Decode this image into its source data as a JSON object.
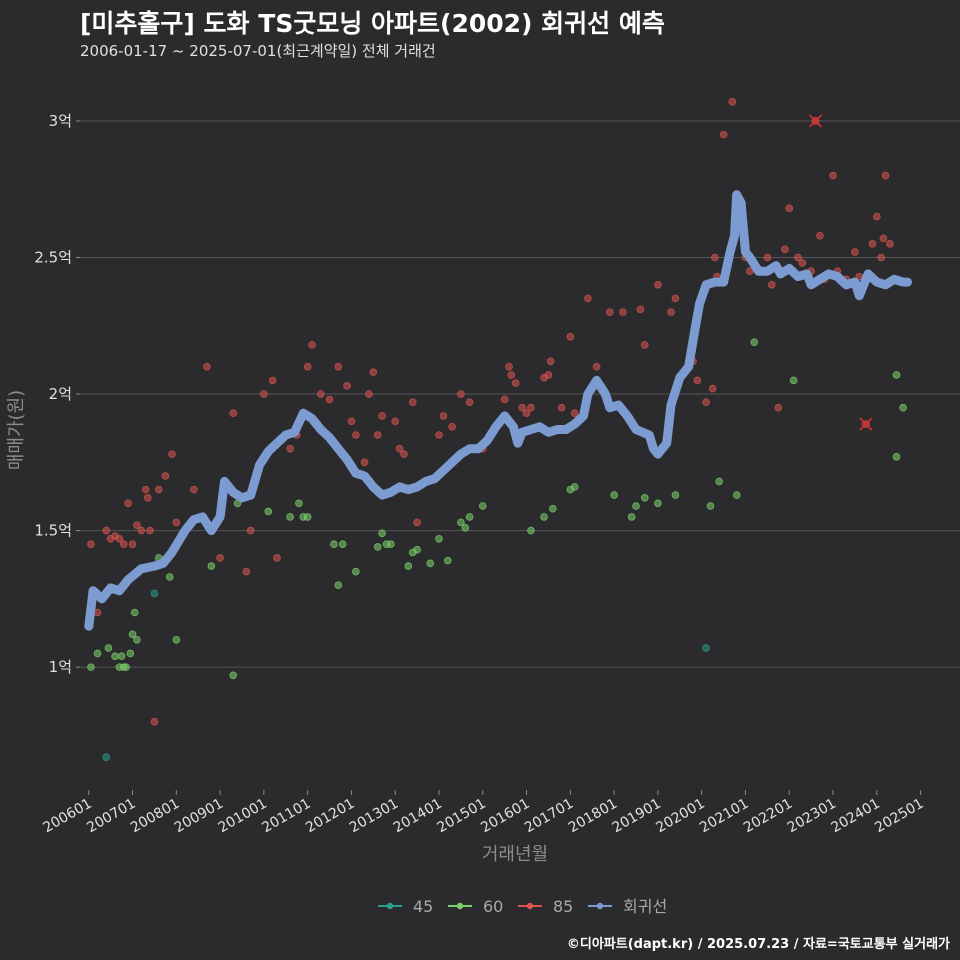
{
  "header": {
    "title": "[미추홀구] 도화 TS굿모닝 아파트(2002) 회귀선 예측",
    "subtitle": "2006-01-17 ~ 2025-07-01(최근계약일) 전체 거래건"
  },
  "footer": {
    "credit": "©디아파트(dapt.kr) / 2025.07.23 / 자료=국토교통부 실거래가"
  },
  "chart_data": {
    "type": "scatter",
    "title": "[미추홀구] 도화 TS굿모닝 아파트(2002) 회귀선 예측",
    "xlabel": "거래년월",
    "ylabel": "매매가(원)",
    "xlim": [
      2005.8,
      2025.9
    ],
    "ylim": [
      0.55,
      3.15
    ],
    "y_unit": "억",
    "yticks": [
      1,
      1.5,
      2,
      2.5,
      3
    ],
    "ytick_labels": [
      "1억",
      "1.5억",
      "2억",
      "2.5억",
      "3억"
    ],
    "xticks": [
      2006,
      2007,
      2008,
      2009,
      2010,
      2011,
      2012,
      2013,
      2014,
      2015,
      2016,
      2017,
      2018,
      2019,
      2020,
      2021,
      2022,
      2023,
      2024,
      2025
    ],
    "xtick_labels": [
      "200601",
      "200701",
      "200801",
      "200901",
      "201001",
      "201101",
      "201201",
      "201301",
      "201401",
      "201501",
      "201601",
      "201701",
      "201801",
      "201901",
      "202001",
      "202101",
      "202201",
      "202301",
      "202401",
      "202501"
    ],
    "legend_position": "bottom",
    "colors": {
      "45": "#2a9d8f",
      "60": "#7bcf6a",
      "85": "#d9534f",
      "regression": "#7b9bd1"
    },
    "series": [
      {
        "name": "45",
        "points": [
          [
            2006.4,
            0.67
          ],
          [
            2007.5,
            1.27
          ],
          [
            2020.1,
            1.07
          ]
        ]
      },
      {
        "name": "60",
        "points": [
          [
            2006.05,
            1.0
          ],
          [
            2006.2,
            1.05
          ],
          [
            2006.45,
            1.07
          ],
          [
            2006.6,
            1.04
          ],
          [
            2006.7,
            1.0
          ],
          [
            2006.75,
            1.04
          ],
          [
            2006.8,
            1.0
          ],
          [
            2006.85,
            1.0
          ],
          [
            2006.95,
            1.05
          ],
          [
            2007.0,
            1.12
          ],
          [
            2007.05,
            1.2
          ],
          [
            2007.1,
            1.1
          ],
          [
            2007.6,
            1.4
          ],
          [
            2007.85,
            1.33
          ],
          [
            2008.0,
            1.1
          ],
          [
            2008.8,
            1.37
          ],
          [
            2009.3,
            0.97
          ],
          [
            2009.4,
            1.6
          ],
          [
            2010.1,
            1.57
          ],
          [
            2010.6,
            1.55
          ],
          [
            2010.8,
            1.6
          ],
          [
            2010.9,
            1.55
          ],
          [
            2011.0,
            1.55
          ],
          [
            2011.6,
            1.45
          ],
          [
            2011.7,
            1.3
          ],
          [
            2011.8,
            1.45
          ],
          [
            2012.1,
            1.35
          ],
          [
            2012.6,
            1.44
          ],
          [
            2012.7,
            1.49
          ],
          [
            2012.8,
            1.45
          ],
          [
            2012.9,
            1.45
          ],
          [
            2013.3,
            1.37
          ],
          [
            2013.4,
            1.42
          ],
          [
            2013.5,
            1.43
          ],
          [
            2013.8,
            1.38
          ],
          [
            2014.0,
            1.47
          ],
          [
            2014.2,
            1.39
          ],
          [
            2014.5,
            1.53
          ],
          [
            2014.6,
            1.51
          ],
          [
            2014.7,
            1.55
          ],
          [
            2015.0,
            1.59
          ],
          [
            2016.1,
            1.5
          ],
          [
            2016.4,
            1.55
          ],
          [
            2016.6,
            1.58
          ],
          [
            2017.0,
            1.65
          ],
          [
            2017.1,
            1.66
          ],
          [
            2018.0,
            1.63
          ],
          [
            2018.4,
            1.55
          ],
          [
            2018.5,
            1.59
          ],
          [
            2018.7,
            1.62
          ],
          [
            2019.0,
            1.6
          ],
          [
            2019.4,
            1.63
          ],
          [
            2020.8,
            1.63
          ],
          [
            2020.4,
            1.68
          ],
          [
            2020.2,
            1.59
          ],
          [
            2021.2,
            2.19
          ],
          [
            2022.1,
            2.05
          ],
          [
            2024.45,
            1.77
          ],
          [
            2024.45,
            2.07
          ],
          [
            2024.6,
            1.95
          ]
        ]
      },
      {
        "name": "85",
        "points": [
          [
            2006.05,
            1.45
          ],
          [
            2006.2,
            1.2
          ],
          [
            2006.4,
            1.5
          ],
          [
            2006.5,
            1.47
          ],
          [
            2006.6,
            1.48
          ],
          [
            2006.7,
            1.47
          ],
          [
            2006.8,
            1.45
          ],
          [
            2006.9,
            1.6
          ],
          [
            2007.0,
            1.45
          ],
          [
            2007.1,
            1.52
          ],
          [
            2007.2,
            1.5
          ],
          [
            2007.3,
            1.65
          ],
          [
            2007.35,
            1.62
          ],
          [
            2007.4,
            1.5
          ],
          [
            2007.5,
            0.8
          ],
          [
            2007.6,
            1.65
          ],
          [
            2007.75,
            1.7
          ],
          [
            2007.9,
            1.78
          ],
          [
            2008.0,
            1.53
          ],
          [
            2008.4,
            1.65
          ],
          [
            2008.7,
            2.1
          ],
          [
            2009.0,
            1.4
          ],
          [
            2009.3,
            1.93
          ],
          [
            2009.6,
            1.35
          ],
          [
            2009.7,
            1.5
          ],
          [
            2010.0,
            2.0
          ],
          [
            2010.2,
            2.05
          ],
          [
            2010.3,
            1.4
          ],
          [
            2010.6,
            1.8
          ],
          [
            2010.75,
            1.85
          ],
          [
            2011.0,
            2.1
          ],
          [
            2011.1,
            2.18
          ],
          [
            2011.3,
            2.0
          ],
          [
            2011.5,
            1.98
          ],
          [
            2011.7,
            2.1
          ],
          [
            2011.9,
            2.03
          ],
          [
            2012.0,
            1.9
          ],
          [
            2012.1,
            1.85
          ],
          [
            2012.3,
            1.75
          ],
          [
            2012.4,
            2.0
          ],
          [
            2012.5,
            2.08
          ],
          [
            2012.6,
            1.85
          ],
          [
            2012.7,
            1.92
          ],
          [
            2013.0,
            1.9
          ],
          [
            2013.1,
            1.8
          ],
          [
            2013.2,
            1.78
          ],
          [
            2013.4,
            1.97
          ],
          [
            2013.5,
            1.53
          ],
          [
            2014.0,
            1.85
          ],
          [
            2014.1,
            1.92
          ],
          [
            2014.3,
            1.88
          ],
          [
            2014.5,
            2.0
          ],
          [
            2014.7,
            1.97
          ],
          [
            2015.0,
            1.8
          ],
          [
            2015.5,
            1.98
          ],
          [
            2015.6,
            2.1
          ],
          [
            2015.65,
            2.07
          ],
          [
            2015.75,
            2.04
          ],
          [
            2015.9,
            1.95
          ],
          [
            2016.0,
            1.93
          ],
          [
            2016.1,
            1.95
          ],
          [
            2016.4,
            2.06
          ],
          [
            2016.5,
            2.07
          ],
          [
            2016.55,
            2.12
          ],
          [
            2016.8,
            1.95
          ],
          [
            2017.0,
            2.21
          ],
          [
            2017.1,
            1.93
          ],
          [
            2017.4,
            2.35
          ],
          [
            2017.6,
            2.1
          ],
          [
            2017.7,
            2.02
          ],
          [
            2017.9,
            2.3
          ],
          [
            2018.2,
            2.3
          ],
          [
            2018.6,
            2.31
          ],
          [
            2018.7,
            2.18
          ],
          [
            2019.0,
            2.4
          ],
          [
            2019.3,
            2.3
          ],
          [
            2019.4,
            2.35
          ],
          [
            2019.8,
            2.12
          ],
          [
            2019.9,
            2.05
          ],
          [
            2020.1,
            1.97
          ],
          [
            2020.25,
            2.02
          ],
          [
            2020.3,
            2.5
          ],
          [
            2020.35,
            2.43
          ],
          [
            2020.5,
            2.95
          ],
          [
            2020.7,
            3.07
          ],
          [
            2021.0,
            2.5
          ],
          [
            2021.1,
            2.45
          ],
          [
            2021.5,
            2.5
          ],
          [
            2021.6,
            2.4
          ],
          [
            2021.75,
            1.95
          ],
          [
            2021.9,
            2.53
          ],
          [
            2022.0,
            2.68
          ],
          [
            2022.2,
            2.5
          ],
          [
            2022.3,
            2.48
          ],
          [
            2022.5,
            2.45
          ],
          [
            2022.7,
            2.58
          ],
          [
            2022.8,
            2.42
          ],
          [
            2023.0,
            2.8
          ],
          [
            2023.1,
            2.45
          ],
          [
            2023.3,
            2.42
          ],
          [
            2023.5,
            2.52
          ],
          [
            2023.6,
            2.43
          ],
          [
            2023.9,
            2.55
          ],
          [
            2024.0,
            2.65
          ],
          [
            2024.1,
            2.5
          ],
          [
            2024.15,
            2.57
          ],
          [
            2024.2,
            2.8
          ],
          [
            2024.3,
            2.55
          ]
        ]
      },
      {
        "name": "85-cancelled",
        "points": [
          [
            2022.6,
            3.0
          ],
          [
            2023.75,
            1.89
          ]
        ]
      },
      {
        "name": "회귀선",
        "points": [
          [
            2006.0,
            1.15
          ],
          [
            2006.1,
            1.28
          ],
          [
            2006.3,
            1.25
          ],
          [
            2006.5,
            1.29
          ],
          [
            2006.7,
            1.28
          ],
          [
            2006.9,
            1.32
          ],
          [
            2007.2,
            1.36
          ],
          [
            2007.5,
            1.37
          ],
          [
            2007.7,
            1.38
          ],
          [
            2007.9,
            1.42
          ],
          [
            2008.2,
            1.5
          ],
          [
            2008.4,
            1.54
          ],
          [
            2008.6,
            1.55
          ],
          [
            2008.8,
            1.5
          ],
          [
            2009.0,
            1.55
          ],
          [
            2009.1,
            1.68
          ],
          [
            2009.3,
            1.64
          ],
          [
            2009.5,
            1.62
          ],
          [
            2009.7,
            1.63
          ],
          [
            2009.9,
            1.74
          ],
          [
            2010.1,
            1.79
          ],
          [
            2010.3,
            1.82
          ],
          [
            2010.5,
            1.85
          ],
          [
            2010.7,
            1.86
          ],
          [
            2010.9,
            1.93
          ],
          [
            2011.1,
            1.91
          ],
          [
            2011.3,
            1.87
          ],
          [
            2011.5,
            1.84
          ],
          [
            2011.7,
            1.8
          ],
          [
            2011.9,
            1.76
          ],
          [
            2012.1,
            1.71
          ],
          [
            2012.3,
            1.7
          ],
          [
            2012.5,
            1.66
          ],
          [
            2012.7,
            1.63
          ],
          [
            2012.9,
            1.64
          ],
          [
            2013.1,
            1.66
          ],
          [
            2013.3,
            1.65
          ],
          [
            2013.5,
            1.66
          ],
          [
            2013.7,
            1.68
          ],
          [
            2013.9,
            1.69
          ],
          [
            2014.1,
            1.72
          ],
          [
            2014.3,
            1.75
          ],
          [
            2014.5,
            1.78
          ],
          [
            2014.7,
            1.8
          ],
          [
            2014.9,
            1.8
          ],
          [
            2015.1,
            1.83
          ],
          [
            2015.3,
            1.88
          ],
          [
            2015.5,
            1.92
          ],
          [
            2015.7,
            1.88
          ],
          [
            2015.8,
            1.82
          ],
          [
            2015.9,
            1.86
          ],
          [
            2016.1,
            1.87
          ],
          [
            2016.3,
            1.88
          ],
          [
            2016.5,
            1.86
          ],
          [
            2016.7,
            1.87
          ],
          [
            2016.9,
            1.87
          ],
          [
            2017.1,
            1.89
          ],
          [
            2017.3,
            1.92
          ],
          [
            2017.4,
            2.0
          ],
          [
            2017.6,
            2.05
          ],
          [
            2017.8,
            2.0
          ],
          [
            2017.9,
            1.95
          ],
          [
            2018.1,
            1.96
          ],
          [
            2018.3,
            1.92
          ],
          [
            2018.5,
            1.87
          ],
          [
            2018.8,
            1.85
          ],
          [
            2018.9,
            1.8
          ],
          [
            2019.0,
            1.78
          ],
          [
            2019.2,
            1.82
          ],
          [
            2019.3,
            1.96
          ],
          [
            2019.5,
            2.06
          ],
          [
            2019.7,
            2.1
          ],
          [
            2019.85,
            2.24
          ],
          [
            2019.95,
            2.33
          ],
          [
            2020.1,
            2.4
          ],
          [
            2020.3,
            2.41
          ],
          [
            2020.5,
            2.41
          ],
          [
            2020.65,
            2.52
          ],
          [
            2020.75,
            2.58
          ],
          [
            2020.8,
            2.73
          ],
          [
            2020.9,
            2.7
          ],
          [
            2021.0,
            2.52
          ],
          [
            2021.1,
            2.5
          ],
          [
            2021.3,
            2.45
          ],
          [
            2021.5,
            2.45
          ],
          [
            2021.7,
            2.47
          ],
          [
            2021.8,
            2.44
          ],
          [
            2022.0,
            2.46
          ],
          [
            2022.2,
            2.43
          ],
          [
            2022.4,
            2.44
          ],
          [
            2022.5,
            2.4
          ],
          [
            2022.7,
            2.42
          ],
          [
            2022.9,
            2.44
          ],
          [
            2023.1,
            2.43
          ],
          [
            2023.3,
            2.4
          ],
          [
            2023.5,
            2.41
          ],
          [
            2023.6,
            2.36
          ],
          [
            2023.8,
            2.44
          ],
          [
            2024.0,
            2.41
          ],
          [
            2024.2,
            2.4
          ],
          [
            2024.4,
            2.42
          ],
          [
            2024.6,
            2.41
          ],
          [
            2024.7,
            2.41
          ]
        ]
      }
    ],
    "legend": [
      {
        "key": "45",
        "label": "45"
      },
      {
        "key": "60",
        "label": "60"
      },
      {
        "key": "85",
        "label": "85"
      },
      {
        "key": "regression",
        "label": "회귀선"
      }
    ]
  }
}
